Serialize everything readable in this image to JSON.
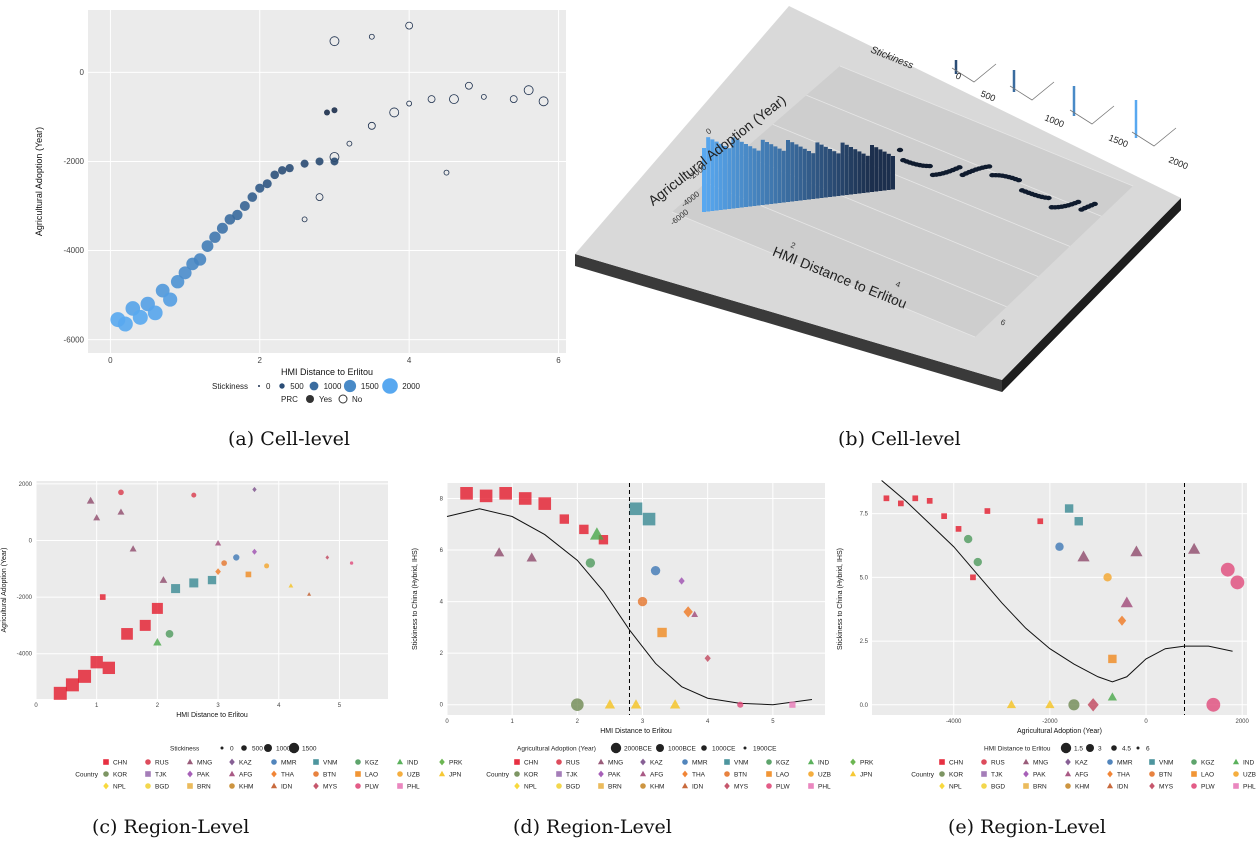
{
  "captions": {
    "a": "(a)  Cell-level",
    "b": "(b)  Cell-level",
    "c": "(c)  Region-Level",
    "d": "(d)  Region-Level",
    "e": "(e)  Region-Level"
  },
  "colors": {
    "panel_bg": "#ebebeb",
    "grid": "#ffffff",
    "dark_blue": "#1c2f4d",
    "light_blue": "#58a8f0",
    "plate_top": "#d9d9d9",
    "plate_side": "#2b2b2b"
  },
  "legend_countries": {
    "title": "Country",
    "rows": [
      [
        "CHN",
        "RUS",
        "MNG",
        "KAZ",
        "MMR",
        "VNM",
        "KGZ",
        "IND",
        "PRK"
      ],
      [
        "KOR",
        "TJK",
        "PAK",
        "AFG",
        "THA",
        "BTN",
        "LAO",
        "UZB",
        "JPN"
      ],
      [
        "NPL",
        "BGD",
        "BRN",
        "KHM",
        "IDN",
        "MYS",
        "PLW",
        "PHL"
      ]
    ],
    "colors": {
      "CHN": "#e41a2c",
      "RUS": "#d9384a",
      "MNG": "#8e4a6b",
      "KAZ": "#7a4f8a",
      "MMR": "#3f78b5",
      "VNM": "#3a8a94",
      "KGZ": "#4d9a5c",
      "IND": "#49a84a",
      "PRK": "#5cae3f",
      "KOR": "#6f8a52",
      "TJK": "#9a6fb0",
      "PAK": "#9d4fb0",
      "AFG": "#a04878",
      "THA": "#f07820",
      "BTN": "#e5742a",
      "LAO": "#f08a1f",
      "UZB": "#f4a52a",
      "JPN": "#f5c21e",
      "NPL": "#f7d528",
      "BGD": "#f2d33a",
      "BRN": "#e9b44a",
      "KHM": "#c88a2c",
      "IDN": "#c25a28",
      "MYS": "#c0455c",
      "PLW": "#e04a7a",
      "PHL": "#e87ab8"
    },
    "shapes": {
      "CHN": "square",
      "RUS": "circle",
      "MNG": "triangle",
      "KAZ": "diamond",
      "MMR": "circle",
      "VNM": "square",
      "KGZ": "circle",
      "IND": "triangle",
      "PRK": "diamond",
      "KOR": "circle",
      "TJK": "square",
      "PAK": "diamond",
      "AFG": "triangle",
      "THA": "diamond",
      "BTN": "circle",
      "LAO": "square",
      "UZB": "circle",
      "JPN": "triangle",
      "NPL": "diamond",
      "BGD": "circle",
      "BRN": "square",
      "KHM": "circle",
      "IDN": "triangle",
      "MYS": "diamond",
      "PLW": "circle",
      "PHL": "square"
    }
  },
  "chart_data": [
    {
      "id": "a",
      "type": "scatter",
      "title": "",
      "xlabel": "HMI Distance to Erlitou",
      "ylabel": "Agricultural Adoption (Year)",
      "xlim": [
        -0.3,
        6.1
      ],
      "ylim": [
        -6300,
        1400
      ],
      "xticks": [
        0,
        2,
        4,
        6
      ],
      "yticks": [
        -6000,
        -4000,
        -2000,
        0
      ],
      "legend_size": {
        "title": "Stickiness",
        "labels": [
          "0",
          "500",
          "1000",
          "1500",
          "2000"
        ]
      },
      "legend_fill": {
        "title": "PRC",
        "labels": [
          "Yes",
          "No"
        ]
      },
      "grid": true,
      "series": [
        {
          "name": "Yes",
          "color_by": "stickiness",
          "points": [
            [
              0.1,
              -5550
            ],
            [
              0.2,
              -5650
            ],
            [
              0.3,
              -5300
            ],
            [
              0.4,
              -5500
            ],
            [
              0.5,
              -5200
            ],
            [
              0.6,
              -5400
            ],
            [
              0.7,
              -4900
            ],
            [
              0.8,
              -5100
            ],
            [
              0.9,
              -4700
            ],
            [
              1.0,
              -4500
            ],
            [
              1.1,
              -4300
            ],
            [
              1.2,
              -4200
            ],
            [
              1.3,
              -3900
            ],
            [
              1.4,
              -3700
            ],
            [
              1.5,
              -3500
            ],
            [
              1.6,
              -3300
            ],
            [
              1.7,
              -3200
            ],
            [
              1.8,
              -3000
            ],
            [
              1.9,
              -2800
            ],
            [
              2.0,
              -2600
            ],
            [
              2.1,
              -2500
            ],
            [
              2.2,
              -2300
            ],
            [
              2.3,
              -2200
            ],
            [
              2.4,
              -2150
            ],
            [
              2.6,
              -2050
            ],
            [
              2.8,
              -2000
            ],
            [
              3.0,
              -2000
            ],
            [
              3.0,
              -850
            ],
            [
              2.9,
              -900
            ]
          ]
        },
        {
          "name": "No",
          "color_by": "stickiness",
          "points": [
            [
              2.6,
              -3300
            ],
            [
              2.8,
              -2800
            ],
            [
              3.0,
              -1900
            ],
            [
              3.2,
              -1600
            ],
            [
              3.5,
              -1200
            ],
            [
              3.8,
              -900
            ],
            [
              4.0,
              -700
            ],
            [
              4.3,
              -600
            ],
            [
              4.6,
              -600
            ],
            [
              5.0,
              -550
            ],
            [
              5.4,
              -600
            ],
            [
              5.8,
              -650
            ],
            [
              4.5,
              -2250
            ],
            [
              4.0,
              1050
            ],
            [
              3.0,
              700
            ],
            [
              3.5,
              800
            ],
            [
              4.8,
              -300
            ],
            [
              5.6,
              -400
            ]
          ]
        }
      ]
    },
    {
      "id": "b",
      "type": "bar3d",
      "title": "",
      "xlabel": "HMI Distance to Erlitou",
      "ylabel": "Agricultural Adoption (Year)",
      "zlabel": "Stickiness",
      "xticks": [
        2,
        4,
        6
      ],
      "yticks": [
        -6000,
        -4000,
        -2000,
        0
      ],
      "zticks": [
        0,
        500,
        1000,
        1500,
        2000
      ]
    },
    {
      "id": "c",
      "type": "scatter",
      "title": "",
      "xlabel": "HMI Distance to Erlitou",
      "ylabel": "Agricultural Adoption (Year)",
      "xlim": [
        0,
        5.8
      ],
      "ylim": [
        -5600,
        2100
      ],
      "xticks": [
        0,
        1,
        2,
        3,
        4,
        5
      ],
      "yticks": [
        -4000,
        -2000,
        0,
        2000
      ],
      "legend_size": {
        "title": "Stickiness",
        "labels": [
          "0",
          "500",
          "1000",
          "1500"
        ]
      },
      "grid": true,
      "points": [
        {
          "c": "CHN",
          "x": 0.4,
          "y": -5400,
          "s": 1500
        },
        {
          "c": "CHN",
          "x": 0.6,
          "y": -5100,
          "s": 1500
        },
        {
          "c": "CHN",
          "x": 0.8,
          "y": -4800,
          "s": 1500
        },
        {
          "c": "CHN",
          "x": 1.0,
          "y": -4300,
          "s": 1400
        },
        {
          "c": "CHN",
          "x": 1.2,
          "y": -4500,
          "s": 1400
        },
        {
          "c": "CHN",
          "x": 1.5,
          "y": -3300,
          "s": 1300
        },
        {
          "c": "CHN",
          "x": 1.8,
          "y": -3000,
          "s": 1200
        },
        {
          "c": "CHN",
          "x": 2.0,
          "y": -2400,
          "s": 1200
        },
        {
          "c": "CHN",
          "x": 1.1,
          "y": -2000,
          "s": 400
        },
        {
          "c": "MNG",
          "x": 0.9,
          "y": 1400,
          "s": 600
        },
        {
          "c": "MNG",
          "x": 1.0,
          "y": 800,
          "s": 500
        },
        {
          "c": "MNG",
          "x": 1.4,
          "y": 1000,
          "s": 500
        },
        {
          "c": "MNG",
          "x": 1.6,
          "y": -300,
          "s": 500
        },
        {
          "c": "MNG",
          "x": 2.1,
          "y": -1400,
          "s": 600
        },
        {
          "c": "RUS",
          "x": 1.4,
          "y": 1700,
          "s": 400
        },
        {
          "c": "RUS",
          "x": 2.6,
          "y": 1600,
          "s": 300
        },
        {
          "c": "KAZ",
          "x": 3.6,
          "y": 1800,
          "s": 200
        },
        {
          "c": "VNM",
          "x": 2.3,
          "y": -1700,
          "s": 900
        },
        {
          "c": "VNM",
          "x": 2.6,
          "y": -1500,
          "s": 900
        },
        {
          "c": "VNM",
          "x": 2.9,
          "y": -1400,
          "s": 800
        },
        {
          "c": "KGZ",
          "x": 2.2,
          "y": -3300,
          "s": 700
        },
        {
          "c": "IND",
          "x": 2.0,
          "y": -3600,
          "s": 700
        },
        {
          "c": "THA",
          "x": 3.0,
          "y": -1100,
          "s": 400
        },
        {
          "c": "MMR",
          "x": 3.3,
          "y": -600,
          "s": 500
        },
        {
          "c": "UZB",
          "x": 3.8,
          "y": -900,
          "s": 300
        },
        {
          "c": "JPN",
          "x": 4.2,
          "y": -1600,
          "s": 200
        },
        {
          "c": "LAO",
          "x": 3.5,
          "y": -1200,
          "s": 400
        },
        {
          "c": "MYS",
          "x": 4.8,
          "y": -600,
          "s": 100
        },
        {
          "c": "IDN",
          "x": 4.5,
          "y": -1900,
          "s": 100
        },
        {
          "c": "PLW",
          "x": 5.2,
          "y": -800,
          "s": 50
        },
        {
          "c": "AFG",
          "x": 3.0,
          "y": -100,
          "s": 400
        },
        {
          "c": "PAK",
          "x": 3.6,
          "y": -400,
          "s": 300
        },
        {
          "c": "BTN",
          "x": 3.1,
          "y": -800,
          "s": 400
        }
      ]
    },
    {
      "id": "d",
      "type": "scatter",
      "title": "",
      "xlabel": "HMI Distance to Erlitou",
      "ylabel": "Stickiness to China (Hybrid, IHS)",
      "xlim": [
        0,
        5.8
      ],
      "ylim": [
        -0.4,
        8.6
      ],
      "xticks": [
        0,
        1,
        2,
        3,
        4,
        5
      ],
      "yticks": [
        0,
        2,
        4,
        6,
        8
      ],
      "vline_x": 2.8,
      "legend_size": {
        "title": "Agricultural Adoption (Year)",
        "labels": [
          "2000BCE",
          "1000BCE",
          "1000CE",
          "1900CE"
        ]
      },
      "grid": true,
      "curve": [
        [
          0.0,
          7.3
        ],
        [
          0.5,
          7.6
        ],
        [
          1.0,
          7.3
        ],
        [
          1.5,
          6.6
        ],
        [
          2.0,
          5.6
        ],
        [
          2.4,
          4.4
        ],
        [
          2.8,
          2.9
        ],
        [
          3.2,
          1.6
        ],
        [
          3.6,
          0.7
        ],
        [
          4.0,
          0.25
        ],
        [
          4.5,
          0.05
        ],
        [
          5.0,
          0.0
        ],
        [
          5.6,
          0.2
        ]
      ],
      "points": [
        {
          "c": "CHN",
          "x": 0.3,
          "y": 8.2,
          "s": 3
        },
        {
          "c": "CHN",
          "x": 0.6,
          "y": 8.1,
          "s": 3
        },
        {
          "c": "CHN",
          "x": 0.9,
          "y": 8.2,
          "s": 3
        },
        {
          "c": "CHN",
          "x": 1.2,
          "y": 8.0,
          "s": 3
        },
        {
          "c": "CHN",
          "x": 1.5,
          "y": 7.8,
          "s": 3
        },
        {
          "c": "CHN",
          "x": 1.8,
          "y": 7.2,
          "s": 2
        },
        {
          "c": "CHN",
          "x": 2.1,
          "y": 6.8,
          "s": 2
        },
        {
          "c": "CHN",
          "x": 2.4,
          "y": 6.4,
          "s": 2
        },
        {
          "c": "MNG",
          "x": 0.8,
          "y": 5.9,
          "s": 2
        },
        {
          "c": "MNG",
          "x": 1.3,
          "y": 5.7,
          "s": 2
        },
        {
          "c": "KGZ",
          "x": 2.2,
          "y": 5.5,
          "s": 2
        },
        {
          "c": "IND",
          "x": 2.3,
          "y": 6.6,
          "s": 3
        },
        {
          "c": "VNM",
          "x": 2.9,
          "y": 7.6,
          "s": 3
        },
        {
          "c": "VNM",
          "x": 3.1,
          "y": 7.2,
          "s": 3
        },
        {
          "c": "MMR",
          "x": 3.2,
          "y": 5.2,
          "s": 2
        },
        {
          "c": "THA",
          "x": 3.7,
          "y": 3.6,
          "s": 2
        },
        {
          "c": "LAO",
          "x": 3.3,
          "y": 2.8,
          "s": 2
        },
        {
          "c": "BTN",
          "x": 3.0,
          "y": 4.0,
          "s": 2
        },
        {
          "c": "PAK",
          "x": 3.6,
          "y": 4.8,
          "s": 1
        },
        {
          "c": "AFG",
          "x": 3.8,
          "y": 3.5,
          "s": 1
        },
        {
          "c": "PLW",
          "x": 4.5,
          "y": 0.0,
          "s": 1
        },
        {
          "c": "JPN",
          "x": 3.5,
          "y": 0.0,
          "s": 2
        },
        {
          "c": "JPN",
          "x": 2.9,
          "y": 0.0,
          "s": 2
        },
        {
          "c": "JPN",
          "x": 2.5,
          "y": 0.0,
          "s": 2
        },
        {
          "c": "KOR",
          "x": 2.0,
          "y": 0.0,
          "s": 3
        },
        {
          "c": "PHL",
          "x": 5.3,
          "y": 0.0,
          "s": 1
        },
        {
          "c": "MYS",
          "x": 4.0,
          "y": 1.8,
          "s": 1
        }
      ]
    },
    {
      "id": "e",
      "type": "scatter",
      "title": "",
      "xlabel": "Agricultural Adoption (Year)",
      "ylabel": "Stickiness to China (Hybrid, IHS)",
      "xlim": [
        -5700,
        2100
      ],
      "ylim": [
        -0.4,
        8.7
      ],
      "xticks": [
        -4000,
        -2000,
        0,
        2000
      ],
      "yticks": [
        0.0,
        2.5,
        5.0,
        7.5
      ],
      "vline_x": 800,
      "legend_size": {
        "title": "HMI Distance to Erlitou",
        "labels": [
          "1.5",
          "3",
          "4.5",
          "6"
        ]
      },
      "grid": true,
      "curve": [
        [
          -5500,
          8.8
        ],
        [
          -5000,
          8.0
        ],
        [
          -4500,
          7.1
        ],
        [
          -4000,
          6.2
        ],
        [
          -3500,
          5.1
        ],
        [
          -3000,
          4.0
        ],
        [
          -2500,
          3.0
        ],
        [
          -2000,
          2.2
        ],
        [
          -1500,
          1.6
        ],
        [
          -1000,
          1.1
        ],
        [
          -700,
          0.9
        ],
        [
          -400,
          1.1
        ],
        [
          0,
          1.8
        ],
        [
          400,
          2.2
        ],
        [
          800,
          2.3
        ],
        [
          1300,
          2.3
        ],
        [
          1800,
          2.1
        ]
      ],
      "points": [
        {
          "c": "CHN",
          "x": -5400,
          "y": 8.1,
          "s": 1.5
        },
        {
          "c": "CHN",
          "x": -5100,
          "y": 7.9,
          "s": 1.5
        },
        {
          "c": "CHN",
          "x": -4800,
          "y": 8.1,
          "s": 1.5
        },
        {
          "c": "CHN",
          "x": -4500,
          "y": 8.0,
          "s": 1.5
        },
        {
          "c": "CHN",
          "x": -4200,
          "y": 7.4,
          "s": 1.5
        },
        {
          "c": "CHN",
          "x": -3900,
          "y": 6.9,
          "s": 1.5
        },
        {
          "c": "CHN",
          "x": -3300,
          "y": 7.6,
          "s": 1.5
        },
        {
          "c": "CHN",
          "x": -2200,
          "y": 7.2,
          "s": 1.5
        },
        {
          "c": "CHN",
          "x": -3600,
          "y": 5.0,
          "s": 1.5
        },
        {
          "c": "KGZ",
          "x": -3700,
          "y": 6.5,
          "s": 3
        },
        {
          "c": "KGZ",
          "x": -3500,
          "y": 5.6,
          "s": 3
        },
        {
          "c": "VNM",
          "x": -1600,
          "y": 7.7,
          "s": 3
        },
        {
          "c": "VNM",
          "x": -1400,
          "y": 7.2,
          "s": 3
        },
        {
          "c": "MMR",
          "x": -1800,
          "y": 6.2,
          "s": 3
        },
        {
          "c": "MNG",
          "x": -1300,
          "y": 5.8,
          "s": 4.5
        },
        {
          "c": "MNG",
          "x": 1000,
          "y": 6.1,
          "s": 4.5
        },
        {
          "c": "MNG",
          "x": -200,
          "y": 6.0,
          "s": 4.5
        },
        {
          "c": "PLW",
          "x": 1700,
          "y": 5.3,
          "s": 6
        },
        {
          "c": "PLW",
          "x": 1900,
          "y": 4.8,
          "s": 6
        },
        {
          "c": "THA",
          "x": -500,
          "y": 3.3,
          "s": 3
        },
        {
          "c": "LAO",
          "x": -700,
          "y": 1.8,
          "s": 3
        },
        {
          "c": "IND",
          "x": -700,
          "y": 0.3,
          "s": 3
        },
        {
          "c": "JPN",
          "x": -2800,
          "y": 0.0,
          "s": 3
        },
        {
          "c": "JPN",
          "x": -2000,
          "y": 0.0,
          "s": 3
        },
        {
          "c": "KOR",
          "x": -1500,
          "y": 0.0,
          "s": 4.5
        },
        {
          "c": "MYS",
          "x": -1100,
          "y": 0.0,
          "s": 4.5
        },
        {
          "c": "PLW",
          "x": 1400,
          "y": 0.0,
          "s": 6
        },
        {
          "c": "AFG",
          "x": -400,
          "y": 4.0,
          "s": 4.5
        },
        {
          "c": "UZB",
          "x": -800,
          "y": 5.0,
          "s": 3
        }
      ]
    }
  ]
}
